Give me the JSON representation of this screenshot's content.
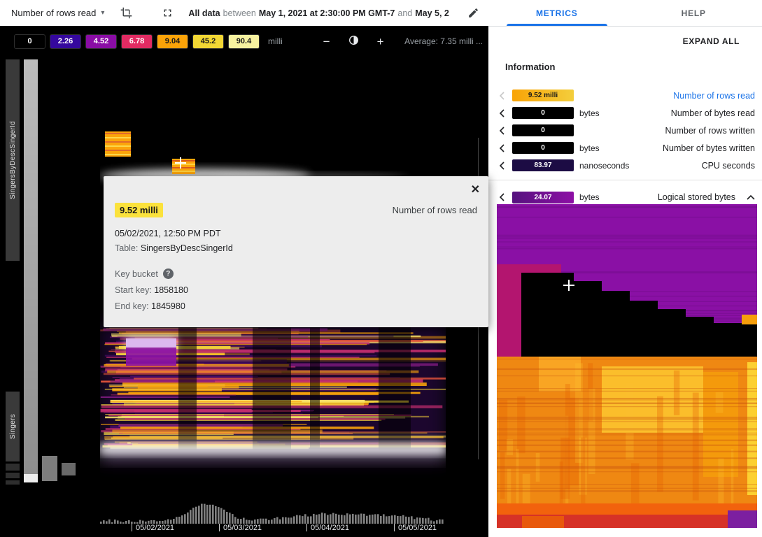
{
  "toolbar": {
    "metric_dropdown": "Number of rows read",
    "dropdown_arrow": "▾",
    "range_prefix": "All data",
    "range_between": "between",
    "range_start": "May 1, 2021 at 2:30:00 PM GMT-7",
    "range_and": "and",
    "range_end": "May 5, 2"
  },
  "legend": {
    "swatches": [
      {
        "label": "0",
        "color": "#000000",
        "text_color": "#ffffff"
      },
      {
        "label": "2.26",
        "color": "#35089e",
        "text_color": "#ffffff"
      },
      {
        "label": "4.52",
        "color": "#8a0da5",
        "text_color": "#ffffff"
      },
      {
        "label": "6.78",
        "color": "#e12b62",
        "text_color": "#ffffff"
      },
      {
        "label": "9.04",
        "color": "#fba308",
        "text_color": "#1a1a1a"
      },
      {
        "label": "45.2",
        "color": "#f2d734",
        "text_color": "#1a1a1a"
      },
      {
        "label": "90.4",
        "color": "#f7f2a0",
        "text_color": "#1a1a1a"
      }
    ],
    "unit": "milli",
    "zoom_out": "−",
    "zoom_in": "+",
    "average": "Average: 7.35 milli ..."
  },
  "heatmap": {
    "y_axis_labels": [
      "SingersByDescSingerId",
      "Singers"
    ],
    "x_axis_dates": [
      "05/02/2021",
      "05/03/2021",
      "05/04/2021",
      "05/05/2021"
    ]
  },
  "popup": {
    "close": "✕",
    "value": "9.52 milli",
    "value_color": "#fbe23c",
    "metric": "Number of rows read",
    "timestamp": "05/02/2021, 12:50 PM PDT",
    "table_label": "Table:",
    "table_name": "SingersByDescSingerId",
    "key_bucket_label": "Key bucket",
    "help_glyph": "?",
    "start_key_label": "Start key:",
    "start_key": "1858180",
    "end_key_label": "End key:",
    "end_key": "1845980"
  },
  "panel": {
    "tabs": [
      {
        "label": "METRICS"
      },
      {
        "label": "HELP"
      }
    ],
    "accent_color": "#1a73e8",
    "expand_all": "EXPAND ALL",
    "section_title": "Information",
    "metrics": [
      {
        "value": "9.52 milli",
        "swatch": "linear-gradient(90deg,#f9a306,#f3ce3c)",
        "text_color": "#1a1a1a",
        "unit": "",
        "label": "Number of rows read",
        "selected": true
      },
      {
        "value": "0",
        "swatch": "#000000",
        "text_color": "#ffffff",
        "unit": "bytes",
        "label": "Number of bytes read",
        "selected": false
      },
      {
        "value": "0",
        "swatch": "#000000",
        "text_color": "#ffffff",
        "unit": "",
        "label": "Number of rows written",
        "selected": false
      },
      {
        "value": "0",
        "swatch": "#000000",
        "text_color": "#ffffff",
        "unit": "bytes",
        "label": "Number of bytes written",
        "selected": false
      },
      {
        "value": "83.97",
        "swatch": "#1c0c44",
        "text_color": "#ffffff",
        "unit": "nanoseconds",
        "label": "CPU seconds",
        "selected": false
      },
      {
        "value": "24.07",
        "swatch": "linear-gradient(90deg,#55127e,#8d0fa5)",
        "text_color": "#ffffff",
        "unit": "bytes",
        "label": "Logical stored bytes",
        "selected": false,
        "expanded": true
      }
    ]
  }
}
